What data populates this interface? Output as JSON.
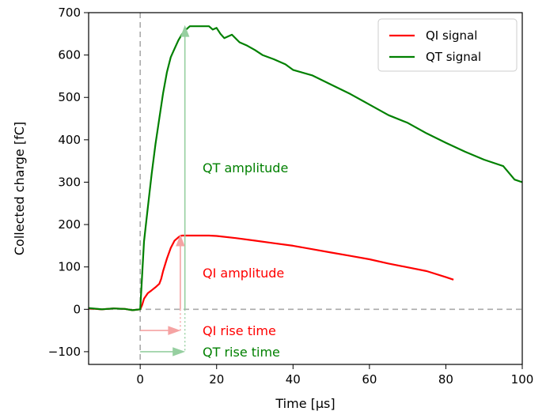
{
  "chart_data": {
    "type": "line",
    "xlabel": "Time [μs]",
    "ylabel": "Collected charge [fC]",
    "xlim": [
      -13.5,
      100
    ],
    "ylim": [
      -130,
      700
    ],
    "xticks": [
      0,
      20,
      40,
      60,
      80,
      100
    ],
    "yticks": [
      -100,
      0,
      100,
      200,
      300,
      400,
      500,
      600,
      700
    ],
    "grid": false,
    "legend_position": "top-right",
    "colors": {
      "qi": "#ff0000",
      "qt": "#008000",
      "qi_light": "#f5a3a3",
      "qt_light": "#96cfa0",
      "reference": "#aaaaaa"
    },
    "series": [
      {
        "name": "QI signal",
        "color": "#ff0000",
        "x": [
          -13.5,
          -10,
          -7,
          -4,
          -2,
          0,
          0.5,
          1,
          2,
          3,
          4,
          5,
          5.5,
          6,
          7,
          8,
          9,
          10,
          10.5,
          11,
          12,
          14,
          16,
          18,
          20,
          25,
          30,
          35,
          40,
          45,
          50,
          55,
          60,
          65,
          70,
          75,
          80,
          82
        ],
        "y": [
          2,
          0,
          2,
          1,
          -2,
          0,
          10,
          25,
          38,
          45,
          52,
          60,
          72,
          90,
          120,
          145,
          162,
          170,
          173,
          174,
          174,
          174,
          174,
          174,
          173,
          168,
          162,
          156,
          150,
          142,
          134,
          126,
          118,
          108,
          99,
          90,
          76,
          70
        ]
      },
      {
        "name": "QT signal",
        "color": "#008000",
        "x": [
          -13.5,
          -10,
          -7,
          -4,
          -2,
          0,
          0.5,
          1,
          2,
          3,
          4,
          5,
          6,
          7,
          8,
          9,
          10,
          11,
          12,
          13,
          14,
          16,
          18,
          19,
          20,
          21,
          22,
          24,
          26,
          28,
          30,
          32,
          35,
          38,
          40,
          45,
          50,
          55,
          60,
          65,
          70,
          75,
          80,
          85,
          90,
          95,
          98,
          100
        ],
        "y": [
          3,
          0,
          2,
          1,
          -2,
          0,
          80,
          160,
          240,
          320,
          390,
          450,
          510,
          560,
          595,
          615,
          635,
          650,
          660,
          668,
          668,
          668,
          668,
          660,
          664,
          650,
          640,
          648,
          630,
          622,
          612,
          600,
          590,
          578,
          565,
          552,
          530,
          508,
          483,
          458,
          440,
          415,
          393,
          372,
          353,
          338,
          306,
          300
        ]
      }
    ],
    "annotations": {
      "qt_amplitude": {
        "label": "QT amplitude",
        "x": 11.7,
        "from": 0,
        "to": 668
      },
      "qi_amplitude": {
        "label": "QI amplitude",
        "x": 10.5,
        "from": 0,
        "to": 174
      },
      "qi_rise_time": {
        "label": "QI rise time",
        "y": -50,
        "from": 0,
        "to": 10.5
      },
      "qt_rise_time": {
        "label": "QT rise time",
        "y": -100,
        "from": 0,
        "to": 11.7
      }
    }
  }
}
